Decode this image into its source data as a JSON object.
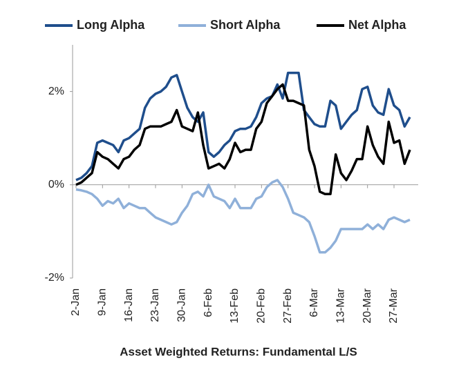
{
  "chart_data": {
    "type": "line",
    "title": "Asset Weighted Returns: Fundamental L/S",
    "categories": [
      "2-Jan",
      null,
      null,
      null,
      null,
      "9-Jan",
      null,
      null,
      null,
      null,
      "16-Jan",
      null,
      null,
      null,
      null,
      "23-Jan",
      null,
      null,
      null,
      null,
      "30-Jan",
      null,
      null,
      null,
      null,
      "6-Feb",
      null,
      null,
      null,
      null,
      "13-Feb",
      null,
      null,
      null,
      null,
      "20-Feb",
      null,
      null,
      null,
      null,
      "27-Feb",
      null,
      null,
      null,
      null,
      "6-Mar",
      null,
      null,
      null,
      null,
      "13-Mar",
      null,
      null,
      null,
      null,
      "20-Mar",
      null,
      null,
      null,
      null,
      "27-Mar",
      null,
      null,
      null
    ],
    "series": [
      {
        "name": "Long Alpha",
        "color": "#1f4e8c",
        "values": [
          0.1,
          0.15,
          0.25,
          0.4,
          0.9,
          0.95,
          0.9,
          0.85,
          0.7,
          0.95,
          1.0,
          1.1,
          1.2,
          1.65,
          1.85,
          1.95,
          2.0,
          2.1,
          2.3,
          2.35,
          2.0,
          1.65,
          1.45,
          1.35,
          1.55,
          0.7,
          0.6,
          0.7,
          0.85,
          0.95,
          1.15,
          1.2,
          1.2,
          1.25,
          1.45,
          1.75,
          1.85,
          1.9,
          2.15,
          1.85,
          2.4,
          2.4,
          2.4,
          1.6,
          1.45,
          1.3,
          1.25,
          1.25,
          1.8,
          1.7,
          1.2,
          1.35,
          1.5,
          1.6,
          2.05,
          2.1,
          1.7,
          1.55,
          1.5,
          2.05,
          1.7,
          1.6,
          1.25,
          1.45
        ]
      },
      {
        "name": "Short Alpha",
        "color": "#8fb0d9",
        "values": [
          -0.1,
          -0.12,
          -0.15,
          -0.2,
          -0.3,
          -0.45,
          -0.35,
          -0.4,
          -0.3,
          -0.5,
          -0.4,
          -0.45,
          -0.5,
          -0.5,
          -0.6,
          -0.7,
          -0.75,
          -0.8,
          -0.85,
          -0.8,
          -0.6,
          -0.45,
          -0.2,
          -0.15,
          -0.25,
          0,
          -0.25,
          -0.3,
          -0.35,
          -0.5,
          -0.3,
          -0.5,
          -0.5,
          -0.5,
          -0.3,
          -0.25,
          -0.05,
          0.05,
          0.1,
          -0.05,
          -0.3,
          -0.6,
          -0.65,
          -0.7,
          -0.8,
          -1.1,
          -1.45,
          -1.45,
          -1.35,
          -1.2,
          -0.95,
          -0.95,
          -0.95,
          -0.95,
          -0.95,
          -0.85,
          -0.95,
          -0.85,
          -0.95,
          -0.75,
          -0.7,
          -0.75,
          -0.8,
          -0.75
        ]
      },
      {
        "name": "Net Alpha",
        "color": "#000000",
        "values": [
          0,
          0.05,
          0.15,
          0.25,
          0.7,
          0.6,
          0.55,
          0.45,
          0.35,
          0.55,
          0.6,
          0.75,
          0.85,
          1.2,
          1.25,
          1.25,
          1.25,
          1.3,
          1.35,
          1.6,
          1.25,
          1.2,
          1.15,
          1.55,
          0.85,
          0.35,
          0.4,
          0.45,
          0.35,
          0.55,
          0.9,
          0.7,
          0.75,
          0.75,
          1.2,
          1.35,
          1.75,
          1.9,
          2.05,
          2.15,
          1.8,
          1.8,
          1.75,
          1.7,
          0.75,
          0.4,
          -0.15,
          -0.2,
          -0.2,
          0.65,
          0.25,
          0.1,
          0.3,
          0.55,
          0.55,
          1.25,
          0.85,
          0.6,
          0.45,
          1.35,
          0.9,
          0.95,
          0.45,
          0.75
        ]
      }
    ],
    "ylim": [
      -2,
      3
    ],
    "yticks": [
      {
        "value": -2,
        "label": "-2%"
      },
      {
        "value": 0,
        "label": "0%"
      },
      {
        "value": 2,
        "label": "2%"
      }
    ],
    "grid": false,
    "legend": "top"
  }
}
